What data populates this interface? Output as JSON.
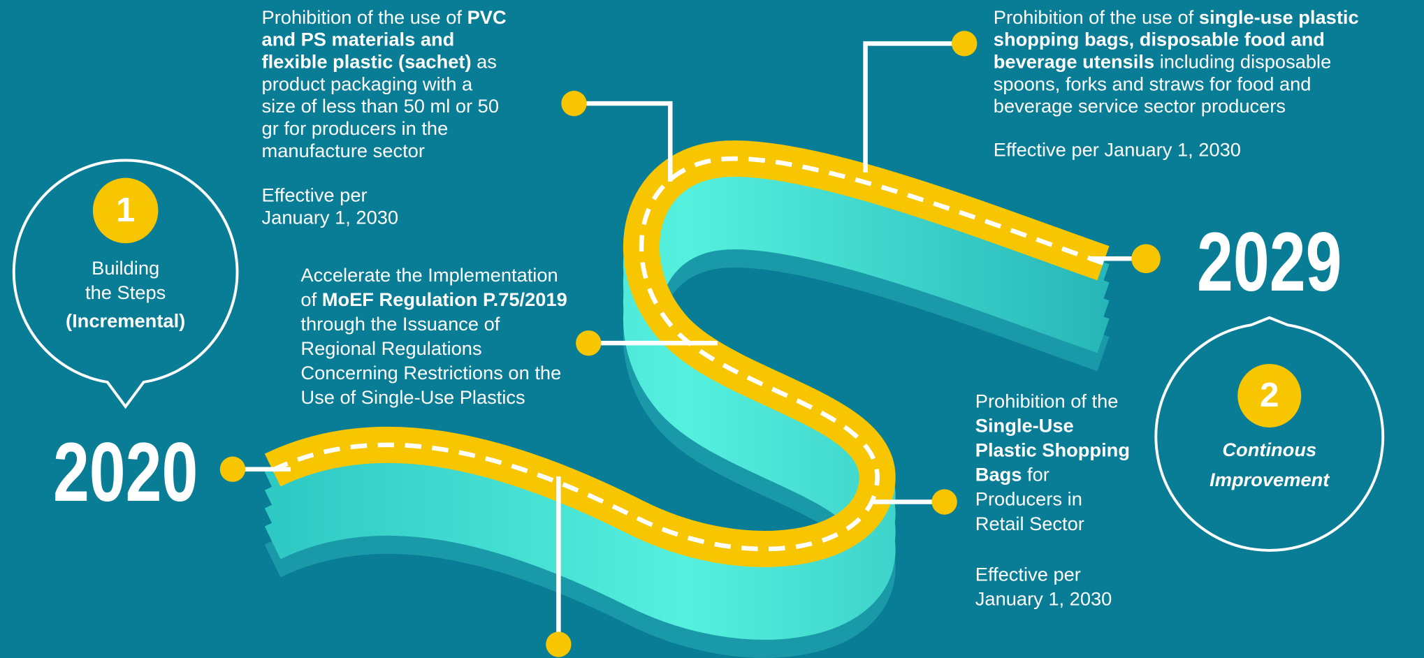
{
  "badges": [
    {
      "number": "1",
      "lines": [
        {
          "text": "Building",
          "bold": false,
          "italic": false
        },
        {
          "text": "the Steps",
          "bold": false,
          "italic": false
        },
        {
          "text": "(Incremental)",
          "bold": true,
          "italic": false
        }
      ]
    },
    {
      "number": "2",
      "lines": [
        {
          "text": "Continous",
          "bold": true,
          "italic": true
        },
        {
          "text": "Improvement",
          "bold": true,
          "italic": true
        }
      ]
    }
  ],
  "years": [
    "2020",
    "2029"
  ],
  "milestones": [
    {
      "lines": [
        [
          {
            "text": "Prohibition of the use of ",
            "bold": false
          },
          {
            "text": "PVC",
            "bold": true
          }
        ],
        [
          {
            "text": "and PS materials and",
            "bold": true
          }
        ],
        [
          {
            "text": "flexible plastic (sachet)",
            "bold": true
          },
          {
            "text": " as",
            "bold": false
          }
        ],
        [
          {
            "text": "product packaging with a",
            "bold": false
          }
        ],
        [
          {
            "text": "size of less than 50 ml or 50",
            "bold": false
          }
        ],
        [
          {
            "text": "gr for producers in the",
            "bold": false
          }
        ],
        [
          {
            "text": "manufacture sector",
            "bold": false
          }
        ]
      ],
      "effective": [
        "Effective per",
        "January 1, 2030"
      ]
    },
    {
      "lines": [
        [
          {
            "text": "Accelerate the Implementation",
            "bold": false
          }
        ],
        [
          {
            "text": "of ",
            "bold": false
          },
          {
            "text": "MoEF Regulation P.75/2019",
            "bold": true
          }
        ],
        [
          {
            "text": "through the Issuance of",
            "bold": false
          }
        ],
        [
          {
            "text": "Regional Regulations",
            "bold": false
          }
        ],
        [
          {
            "text": "Concerning Restrictions on the",
            "bold": false
          }
        ],
        [
          {
            "text": "Use of Single-Use Plastics",
            "bold": false
          }
        ]
      ],
      "effective": []
    },
    {
      "lines": [
        [
          {
            "text": "Prohibition of the use of ",
            "bold": false
          },
          {
            "text": "single-use plastic",
            "bold": true
          }
        ],
        [
          {
            "text": "shopping bags, disposable food and",
            "bold": true
          }
        ],
        [
          {
            "text": "beverage utensils",
            "bold": true
          },
          {
            "text": " including disposable",
            "bold": false
          }
        ],
        [
          {
            "text": "spoons, forks and straws for food and",
            "bold": false
          }
        ],
        [
          {
            "text": "beverage service sector producers",
            "bold": false
          }
        ]
      ],
      "effective": [
        "Effective per January 1, 2030"
      ]
    },
    {
      "lines": [
        [
          {
            "text": "Prohibition of the",
            "bold": false
          }
        ],
        [
          {
            "text": "Single-Use",
            "bold": true
          }
        ],
        [
          {
            "text": "Plastic Shopping",
            "bold": true
          }
        ],
        [
          {
            "text": "Bags",
            "bold": true
          },
          {
            "text": " for",
            "bold": false
          }
        ],
        [
          {
            "text": "Producers in",
            "bold": false
          }
        ],
        [
          {
            "text": "Retail Sector",
            "bold": false
          }
        ]
      ],
      "effective": [
        "Effective per",
        "January 1, 2030"
      ]
    }
  ]
}
